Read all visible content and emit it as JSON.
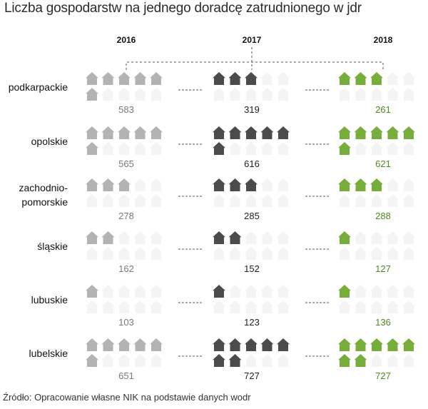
{
  "title": "Liczba gospodarstw na jednego doradcę zatrudnionego w jdr",
  "source": "Źródło: Opracowanie własne NIK na podstawie danych wodr",
  "colors": {
    "y2016": "#b3b3b4",
    "y2017": "#4b4b4d",
    "y2018": "#76ad3b",
    "background_icon": "#f4f4f4",
    "dash": "#555555"
  },
  "icon": "house-icon",
  "chart_data": {
    "type": "pictogram",
    "title": "Liczba gospodarstw na jednego doradcę zatrudnionego w jdr",
    "years": [
      "2016",
      "2017",
      "2018"
    ],
    "regions": [
      {
        "name": [
          "podkarpackie"
        ],
        "values": [
          583,
          319,
          261
        ],
        "icons": [
          6,
          3,
          3
        ]
      },
      {
        "name": [
          "opolskie"
        ],
        "values": [
          565,
          616,
          621
        ],
        "icons": [
          6,
          6,
          6
        ]
      },
      {
        "name": [
          "zachodnio-",
          "pomorskie"
        ],
        "values": [
          278,
          285,
          288
        ],
        "icons": [
          3,
          3,
          3
        ]
      },
      {
        "name": [
          "śląskie"
        ],
        "values": [
          162,
          152,
          127
        ],
        "icons": [
          2,
          2,
          1
        ]
      },
      {
        "name": [
          "lubuskie"
        ],
        "values": [
          103,
          123,
          136
        ],
        "icons": [
          1,
          1,
          1
        ]
      },
      {
        "name": [
          "lubelskie"
        ],
        "values": [
          651,
          727,
          727
        ],
        "icons": [
          6,
          7,
          7
        ]
      }
    ]
  }
}
